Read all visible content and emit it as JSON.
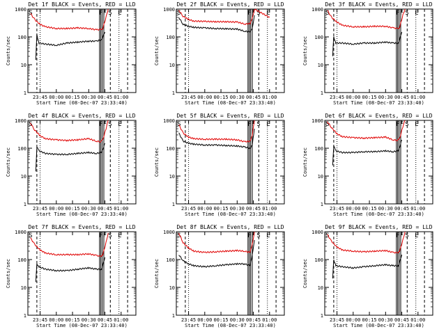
{
  "style": {
    "events_color": "#000000",
    "lld_color": "#e00000",
    "axis_color": "#000000",
    "background": "#ffffff"
  },
  "chart_data": [
    {
      "type": "line",
      "title": "Det 1f BLACK = Events, RED = LLD",
      "xlabel": "Start Time (08-Dec-07 23:33:40)",
      "ylabel": "Counts/sec",
      "ylim": [
        1,
        1000
      ],
      "yscale": "log",
      "yticks": [
        "1",
        "10",
        "100",
        "1000"
      ],
      "xticks": [
        "23:45",
        "00:00",
        "00:15",
        "00:30",
        "00:45",
        "01:00"
      ],
      "markers": [
        "S",
        "F",
        "F",
        "S",
        "E"
      ],
      "series": [
        {
          "name": "Events",
          "color": "#000000",
          "x": [
            "23:41",
            "23:42",
            "23:44",
            "23:50",
            "00:00",
            "00:10",
            "00:20",
            "00:30",
            "00:37",
            "00:42",
            "00:45"
          ],
          "values": [
            15,
            120,
            60,
            55,
            50,
            60,
            65,
            70,
            70,
            80,
            150
          ]
        },
        {
          "name": "LLD",
          "color": "#e00000",
          "x": [
            "23:36",
            "23:40",
            "23:45",
            "23:50",
            "00:00",
            "00:10",
            "00:20",
            "00:30",
            "00:37",
            "00:41",
            "00:43",
            "00:46",
            "00:48"
          ],
          "values": [
            700,
            420,
            280,
            230,
            200,
            200,
            210,
            200,
            180,
            185,
            200,
            500,
            1000
          ]
        }
      ]
    },
    {
      "type": "line",
      "title": "Det 2f BLACK = Events, RED = LLD",
      "xlabel": "Start Time (08-Dec-07 23:33:40)",
      "ylabel": "Counts/sec",
      "ylim": [
        1,
        1000
      ],
      "yscale": "log",
      "yticks": [
        "1",
        "10",
        "100",
        "1000"
      ],
      "xticks": [
        "23:45",
        "00:00",
        "00:15",
        "00:30",
        "00:45",
        "01:00"
      ],
      "markers": [
        "S",
        "F",
        "F",
        "S",
        "E"
      ],
      "series": [
        {
          "name": "Events",
          "color": "#000000",
          "x": [
            "23:36",
            "23:40",
            "23:45",
            "23:50",
            "00:00",
            "00:10",
            "00:20",
            "00:30",
            "00:37",
            "00:42",
            "00:44",
            "00:46"
          ],
          "values": [
            500,
            280,
            240,
            220,
            210,
            200,
            195,
            190,
            160,
            150,
            200,
            600
          ]
        },
        {
          "name": "LLD",
          "color": "#e00000",
          "x": [
            "23:36",
            "23:40",
            "23:45",
            "23:50",
            "00:00",
            "00:10",
            "00:20",
            "00:30",
            "00:37",
            "00:42",
            "00:44",
            "00:46",
            "01:00"
          ],
          "values": [
            900,
            550,
            420,
            370,
            360,
            350,
            350,
            340,
            290,
            300,
            450,
            1000,
            500
          ]
        }
      ]
    },
    {
      "type": "line",
      "title": "Det 3f BLACK = Events, RED = LLD",
      "xlabel": "Start Time (08-Dec-07 23:33:40)",
      "ylabel": "Counts/sec",
      "ylim": [
        1,
        1000
      ],
      "yscale": "log",
      "yticks": [
        "1",
        "10",
        "100",
        "1000"
      ],
      "xticks": [
        "23:45",
        "00:00",
        "00:15",
        "00:30",
        "00:45",
        "01:00"
      ],
      "markers": [
        "S",
        "F",
        "F",
        "S",
        "E"
      ],
      "series": [
        {
          "name": "Events",
          "color": "#000000",
          "x": [
            "23:41",
            "23:42",
            "23:44",
            "23:50",
            "00:00",
            "00:10",
            "00:20",
            "00:30",
            "00:37",
            "00:42",
            "00:45"
          ],
          "values": [
            20,
            100,
            60,
            60,
            55,
            60,
            60,
            65,
            60,
            60,
            150
          ]
        },
        {
          "name": "LLD",
          "color": "#e00000",
          "x": [
            "23:36",
            "23:40",
            "23:45",
            "23:50",
            "00:00",
            "00:10",
            "00:20",
            "00:30",
            "00:37",
            "00:41",
            "00:43",
            "00:46",
            "00:48"
          ],
          "values": [
            900,
            500,
            340,
            260,
            230,
            230,
            240,
            240,
            210,
            200,
            220,
            600,
            1000
          ]
        }
      ]
    },
    {
      "type": "line",
      "title": "Det 4f BLACK = Events, RED = LLD",
      "xlabel": "Start Time (08-Dec-07 23:33:40)",
      "ylabel": "Counts/sec",
      "ylim": [
        1,
        1000
      ],
      "yscale": "log",
      "yticks": [
        "1",
        "10",
        "100",
        "1000"
      ],
      "xticks": [
        "23:45",
        "00:00",
        "00:15",
        "00:30",
        "00:45",
        "01:00"
      ],
      "markers": [
        "S",
        "F",
        "F",
        "S",
        "E"
      ],
      "series": [
        {
          "name": "Events",
          "color": "#000000",
          "x": [
            "23:41",
            "23:42",
            "23:44",
            "23:50",
            "00:00",
            "00:10",
            "00:20",
            "00:30",
            "00:37",
            "00:42",
            "00:45"
          ],
          "values": [
            15,
            110,
            80,
            65,
            60,
            60,
            65,
            70,
            65,
            70,
            150
          ]
        },
        {
          "name": "LLD",
          "color": "#e00000",
          "x": [
            "23:36",
            "23:40",
            "23:45",
            "23:50",
            "00:00",
            "00:10",
            "00:20",
            "00:30",
            "00:37",
            "00:41",
            "00:43",
            "00:46",
            "00:48"
          ],
          "values": [
            800,
            450,
            280,
            220,
            200,
            190,
            200,
            220,
            180,
            170,
            200,
            500,
            1000
          ]
        }
      ]
    },
    {
      "type": "line",
      "title": "Det 5f BLACK = Events, RED = LLD",
      "xlabel": "Start Time (08-Dec-07 23:33:40)",
      "ylabel": "Counts/sec",
      "ylim": [
        1,
        1000
      ],
      "yscale": "log",
      "yticks": [
        "1",
        "10",
        "100",
        "1000"
      ],
      "xticks": [
        "23:45",
        "00:00",
        "00:15",
        "00:30",
        "00:45",
        "01:00"
      ],
      "markers": [
        "S",
        "F",
        "F",
        "S",
        "E"
      ],
      "series": [
        {
          "name": "Events",
          "color": "#000000",
          "x": [
            "23:36",
            "23:40",
            "23:45",
            "23:50",
            "00:00",
            "00:10",
            "00:20",
            "00:30",
            "00:37",
            "00:42",
            "00:44",
            "00:46"
          ],
          "values": [
            350,
            180,
            150,
            140,
            130,
            130,
            125,
            120,
            110,
            100,
            130,
            500
          ]
        },
        {
          "name": "LLD",
          "color": "#e00000",
          "x": [
            "23:36",
            "23:40",
            "23:45",
            "23:50",
            "00:00",
            "00:10",
            "00:20",
            "00:30",
            "00:37",
            "00:42",
            "00:44",
            "00:46"
          ],
          "values": [
            700,
            350,
            250,
            220,
            210,
            210,
            210,
            200,
            170,
            180,
            300,
            1000
          ]
        }
      ]
    },
    {
      "type": "line",
      "title": "Det 6f BLACK = Events, RED = LLD",
      "xlabel": "Start Time (08-Dec-07 23:33:40)",
      "ylabel": "Counts/sec",
      "ylim": [
        1,
        1000
      ],
      "yscale": "log",
      "yticks": [
        "1",
        "10",
        "100",
        "1000"
      ],
      "xticks": [
        "23:45",
        "00:00",
        "00:15",
        "00:30",
        "00:45",
        "01:00"
      ],
      "markers": [
        "S",
        "F",
        "F",
        "S",
        "E"
      ],
      "series": [
        {
          "name": "Events",
          "color": "#000000",
          "x": [
            "23:41",
            "23:42",
            "23:44",
            "23:50",
            "00:00",
            "00:10",
            "00:20",
            "00:30",
            "00:37",
            "00:42",
            "00:45"
          ],
          "values": [
            25,
            120,
            80,
            70,
            70,
            75,
            75,
            80,
            75,
            80,
            200
          ]
        },
        {
          "name": "LLD",
          "color": "#e00000",
          "x": [
            "23:36",
            "23:40",
            "23:45",
            "23:50",
            "00:00",
            "00:10",
            "00:20",
            "00:30",
            "00:37",
            "00:41",
            "00:43",
            "00:46",
            "00:48"
          ],
          "values": [
            900,
            550,
            330,
            260,
            240,
            230,
            240,
            250,
            200,
            190,
            220,
            600,
            1000
          ]
        }
      ]
    },
    {
      "type": "line",
      "title": "Det 7f BLACK = Events, RED = LLD",
      "xlabel": "Start Time (08-Dec-07 23:33:40)",
      "ylabel": "Counts/sec",
      "ylim": [
        1,
        1000
      ],
      "yscale": "log",
      "yticks": [
        "1",
        "10",
        "100",
        "1000"
      ],
      "xticks": [
        "23:45",
        "00:00",
        "00:15",
        "00:30",
        "00:45",
        "01:00"
      ],
      "markers": [
        "S",
        "F",
        "F",
        "S",
        "E"
      ],
      "series": [
        {
          "name": "Events",
          "color": "#000000",
          "x": [
            "23:41",
            "23:42",
            "23:44",
            "23:50",
            "00:00",
            "00:10",
            "00:20",
            "00:30",
            "00:37",
            "00:42",
            "00:45"
          ],
          "values": [
            15,
            70,
            55,
            45,
            40,
            40,
            45,
            50,
            45,
            45,
            120
          ]
        },
        {
          "name": "LLD",
          "color": "#e00000",
          "x": [
            "23:36",
            "23:40",
            "23:45",
            "23:50",
            "00:00",
            "00:10",
            "00:20",
            "00:30",
            "00:37",
            "00:41",
            "00:43",
            "00:46",
            "00:48"
          ],
          "values": [
            600,
            350,
            220,
            170,
            150,
            150,
            150,
            160,
            140,
            130,
            150,
            400,
            900
          ]
        }
      ]
    },
    {
      "type": "line",
      "title": "Det 8f BLACK = Events, RED = LLD",
      "xlabel": "Start Time (08-Dec-07 23:33:40)",
      "ylabel": "Counts/sec",
      "ylim": [
        1,
        1000
      ],
      "yscale": "log",
      "yticks": [
        "1",
        "10",
        "100",
        "1000"
      ],
      "xticks": [
        "23:45",
        "00:00",
        "00:15",
        "00:30",
        "00:45",
        "01:00"
      ],
      "markers": [
        "S",
        "F",
        "F",
        "S",
        "E"
      ],
      "series": [
        {
          "name": "Events",
          "color": "#000000",
          "x": [
            "23:36",
            "23:40",
            "23:45",
            "23:50",
            "00:00",
            "00:10",
            "00:20",
            "00:30",
            "00:37",
            "00:42",
            "00:44",
            "00:46"
          ],
          "values": [
            150,
            90,
            70,
            60,
            55,
            60,
            65,
            70,
            70,
            60,
            150,
            500
          ]
        },
        {
          "name": "LLD",
          "color": "#e00000",
          "x": [
            "23:36",
            "23:40",
            "23:45",
            "23:50",
            "00:00",
            "00:10",
            "00:20",
            "00:30",
            "00:37",
            "00:42",
            "00:44",
            "00:46"
          ],
          "values": [
            900,
            400,
            260,
            200,
            180,
            190,
            200,
            210,
            200,
            180,
            350,
            1000
          ]
        }
      ]
    },
    {
      "type": "line",
      "title": "Det 9f BLACK = Events, RED = LLD",
      "xlabel": "Start Time (08-Dec-07 23:33:40)",
      "ylabel": "Counts/sec",
      "ylim": [
        1,
        1000
      ],
      "yscale": "log",
      "yticks": [
        "1",
        "10",
        "100",
        "1000"
      ],
      "xticks": [
        "23:45",
        "00:00",
        "00:15",
        "00:30",
        "00:45",
        "01:00"
      ],
      "markers": [
        "S",
        "F",
        "F",
        "S",
        "E"
      ],
      "series": [
        {
          "name": "Events",
          "color": "#000000",
          "x": [
            "23:41",
            "23:42",
            "23:44",
            "23:50",
            "00:00",
            "00:10",
            "00:20",
            "00:30",
            "00:37",
            "00:42",
            "00:45"
          ],
          "values": [
            20,
            100,
            60,
            55,
            50,
            55,
            60,
            65,
            60,
            60,
            150
          ]
        },
        {
          "name": "LLD",
          "color": "#e00000",
          "x": [
            "23:36",
            "23:40",
            "23:45",
            "23:50",
            "00:00",
            "00:10",
            "00:20",
            "00:30",
            "00:37",
            "00:41",
            "00:43",
            "00:46",
            "00:48"
          ],
          "values": [
            800,
            450,
            280,
            220,
            200,
            190,
            200,
            210,
            180,
            175,
            200,
            500,
            1000
          ]
        }
      ]
    }
  ]
}
